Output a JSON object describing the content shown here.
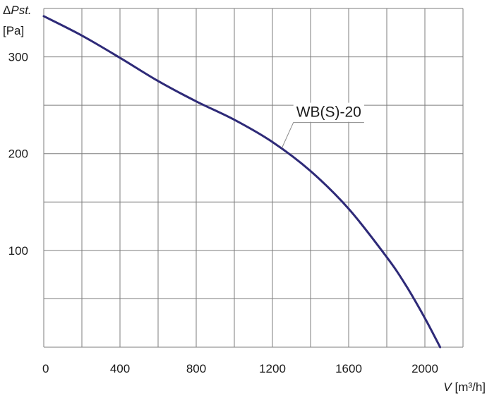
{
  "chart_data": {
    "type": "line",
    "x_label": {
      "symbol": "V",
      "unit": "[m³/h]"
    },
    "y_label": {
      "symbol_prefix": "Δ",
      "symbol": "Pst.",
      "unit": "[Pa]"
    },
    "xlim": [
      0,
      2200
    ],
    "ylim": [
      0,
      350
    ],
    "x_ticks": [
      0,
      400,
      800,
      1200,
      1600,
      2000
    ],
    "x_tick_labels": [
      "0",
      "400",
      "800",
      "1200",
      "1600",
      "2000"
    ],
    "y_ticks": [
      100,
      200,
      300
    ],
    "y_tick_labels": [
      "100",
      "200",
      "300"
    ],
    "x_grid_step": 200,
    "y_grid_step": 50,
    "grid": true,
    "series": [
      {
        "name": "WB(S)-20",
        "color": "#2e2a78",
        "x": [
          0,
          200,
          400,
          600,
          800,
          1000,
          1200,
          1400,
          1600,
          1800,
          1900,
          2000,
          2080
        ],
        "y": [
          342,
          322,
          299,
          275,
          254,
          235,
          212,
          182,
          143,
          93,
          64,
          30,
          0
        ]
      }
    ],
    "annotation": {
      "text": "WB(S)-20",
      "anchor_x": 1250,
      "anchor_y": 206,
      "text_x": 1310,
      "text_y": 238
    }
  }
}
